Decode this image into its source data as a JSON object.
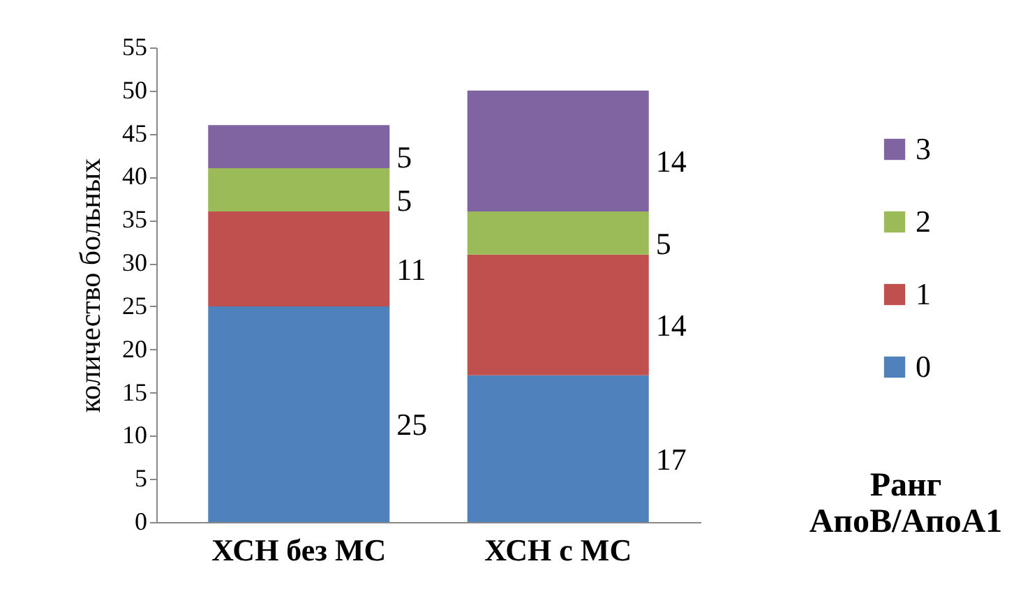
{
  "chart_data": {
    "type": "bar",
    "stacked": true,
    "ylabel": "количество больных",
    "legend_title": "Ранг АпоВ/АпоА1",
    "categories": [
      "ХСН без МС",
      "ХСН с МС"
    ],
    "series": [
      {
        "name": "0",
        "color": "#4f81bd",
        "values": [
          25,
          17
        ]
      },
      {
        "name": "1",
        "color": "#c0504d",
        "values": [
          11,
          14
        ]
      },
      {
        "name": "2",
        "color": "#9bbb59",
        "values": [
          5,
          5
        ]
      },
      {
        "name": "3",
        "color": "#8064a2",
        "values": [
          5,
          14
        ]
      }
    ],
    "ylim": [
      0,
      55
    ],
    "yticks": [
      0,
      5,
      10,
      15,
      20,
      25,
      30,
      35,
      40,
      45,
      50,
      55
    ],
    "data_labels": true,
    "legend": "right",
    "grid": false
  }
}
